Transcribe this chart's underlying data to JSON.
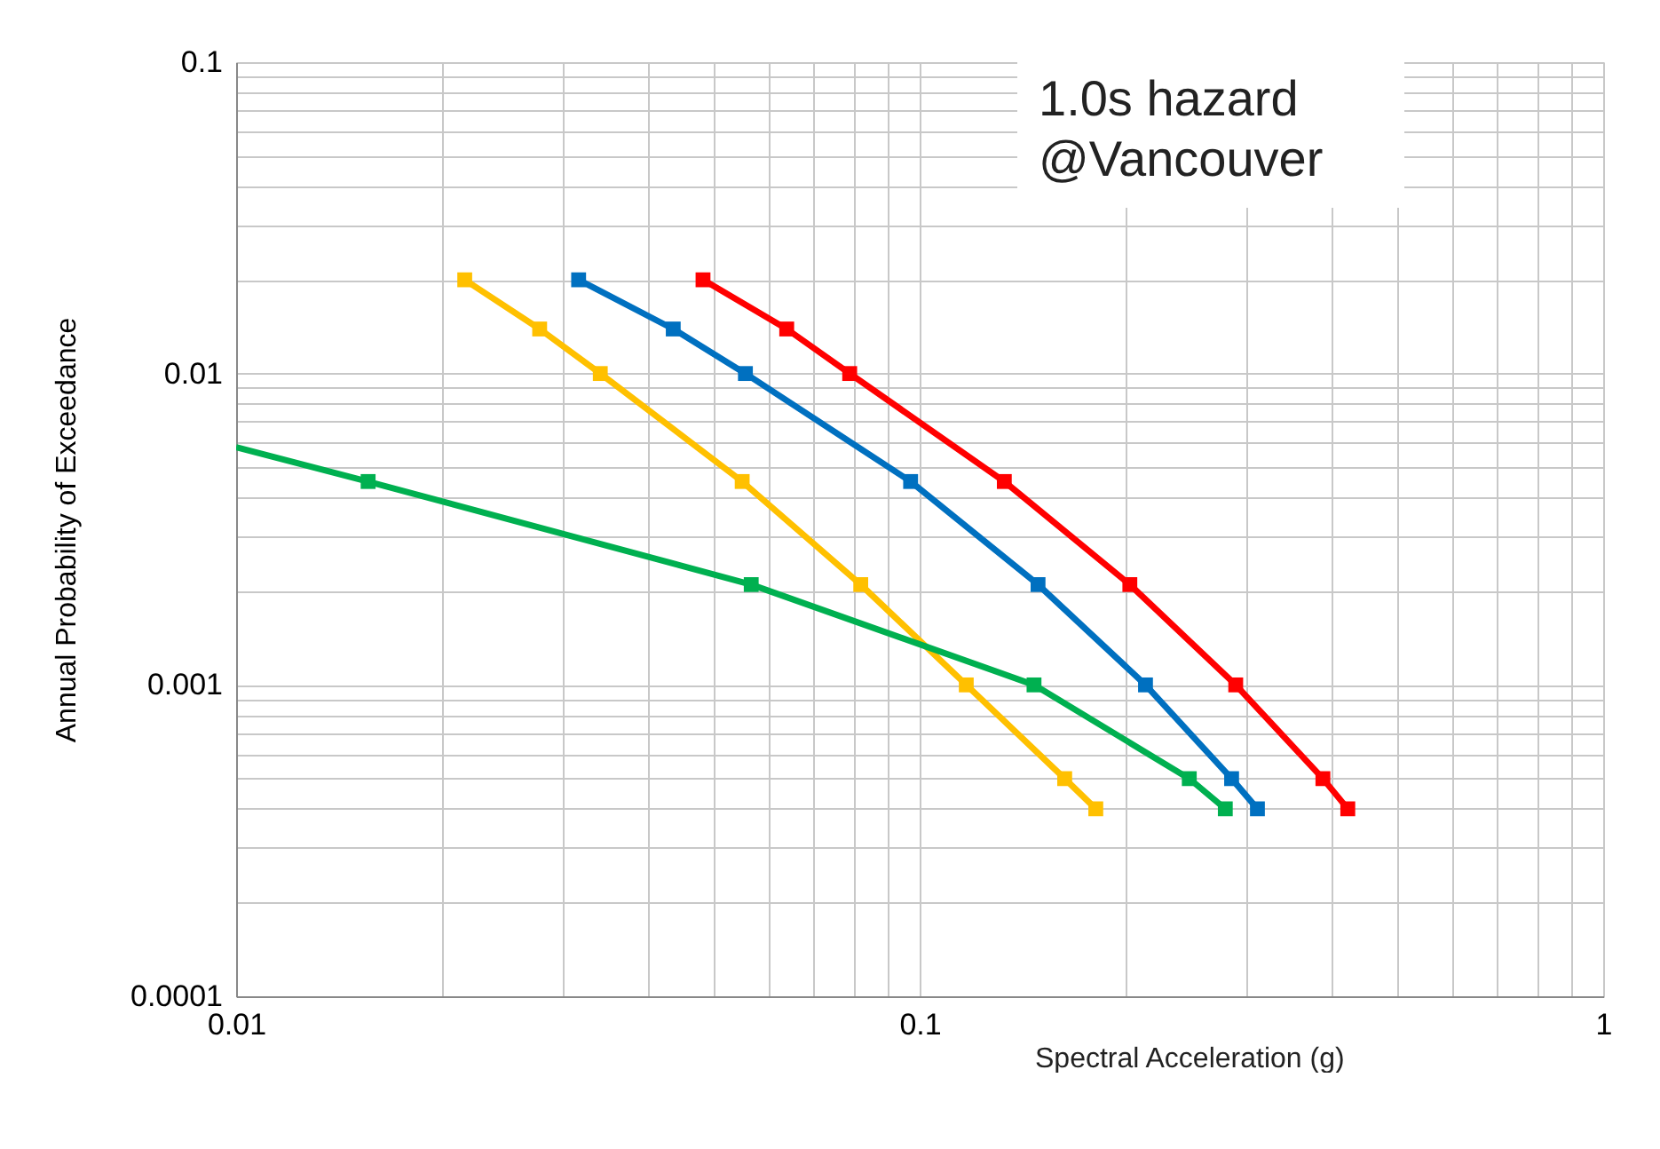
{
  "chart_data": {
    "type": "line",
    "xlabel": "Spectral Acceleration (g)",
    "ylabel": "Annual Probability of Exceedance",
    "log": "xy",
    "grid": true,
    "marker": "square",
    "line_style": "solid",
    "annotations": [
      "1.0s   hazard\n@Vancouver"
    ],
    "xlim": [
      0.01,
      1
    ],
    "ylim": [
      0.0001,
      0.1
    ],
    "xticks": [
      0.01,
      {
        "value": 0.02,
        "label": null
      },
      {
        "value": 0.03,
        "label": null
      },
      {
        "value": 0.04,
        "label": null
      },
      {
        "value": 0.05,
        "label": null
      },
      {
        "value": 0.06,
        "label": null
      },
      {
        "value": 0.07,
        "label": null
      },
      {
        "value": 0.08,
        "label": null
      },
      {
        "value": 0.09,
        "label": null
      },
      0.1,
      {
        "value": 0.2,
        "label": null
      },
      {
        "value": 0.3,
        "label": null
      },
      {
        "value": 0.4,
        "label": null
      },
      {
        "value": 0.5,
        "label": null
      },
      {
        "value": 0.6,
        "label": null
      },
      {
        "value": 0.7,
        "label": null
      },
      {
        "value": 0.8,
        "label": null
      },
      {
        "value": 0.9,
        "label": null
      },
      1
    ],
    "yticks": [
      0.0001,
      {
        "value": 0.0002,
        "label": null
      },
      {
        "value": 0.0003,
        "label": null
      },
      {
        "value": 0.0004,
        "label": null
      },
      {
        "value": 0.0005,
        "label": null
      },
      {
        "value": 0.0006,
        "label": null
      },
      {
        "value": 0.0007,
        "label": null
      },
      {
        "value": 0.0008,
        "label": null
      },
      {
        "value": 0.0009,
        "label": null
      },
      0.001,
      {
        "value": 0.002,
        "label": null
      },
      {
        "value": 0.003,
        "label": null
      },
      {
        "value": 0.004,
        "label": null
      },
      {
        "value": 0.005,
        "label": null
      },
      {
        "value": 0.006,
        "label": null
      },
      {
        "value": 0.007,
        "label": null
      },
      {
        "value": 0.008,
        "label": null
      },
      {
        "value": 0.009,
        "label": null
      },
      0.01,
      {
        "value": 0.02,
        "label": null
      },
      {
        "value": 0.03,
        "label": null
      },
      {
        "value": 0.04,
        "label": null
      },
      {
        "value": 0.05,
        "label": null
      },
      {
        "value": 0.06,
        "label": null
      },
      {
        "value": 0.07,
        "label": null
      },
      {
        "value": 0.08,
        "label": null
      },
      {
        "value": 0.09,
        "label": null
      },
      0.1
    ],
    "series": [
      {
        "color": "#ffc000",
        "x": [
          0.0216,
          0.0278,
          0.0341,
          0.055,
          0.082,
          0.117,
          0.163,
          0.181
        ],
        "values": [
          0.02,
          0.0139,
          0.01,
          0.0045,
          0.0021,
          0.001,
          0.0005,
          0.0004
        ]
      },
      {
        "color": "#0070c0",
        "x": [
          0.0317,
          0.0436,
          0.0556,
          0.097,
          0.149,
          0.214,
          0.286,
          0.312
        ],
        "values": [
          0.02,
          0.0139,
          0.01,
          0.0045,
          0.0021,
          0.001,
          0.0005,
          0.0004
        ]
      },
      {
        "color": "#ff0000",
        "x": [
          0.0482,
          0.0639,
          0.079,
          0.133,
          0.203,
          0.29,
          0.389,
          0.423
        ],
        "values": [
          0.02,
          0.0139,
          0.01,
          0.0045,
          0.0021,
          0.001,
          0.0005,
          0.0004
        ]
      },
      {
        "color": "#00b050",
        "x": [
          0.01,
          0.0156,
          0.0567,
          0.147,
          0.248,
          0.28
        ],
        "values": [
          0.0058,
          0.0045,
          0.0021,
          0.001,
          0.0005,
          0.0004
        ]
      }
    ]
  }
}
